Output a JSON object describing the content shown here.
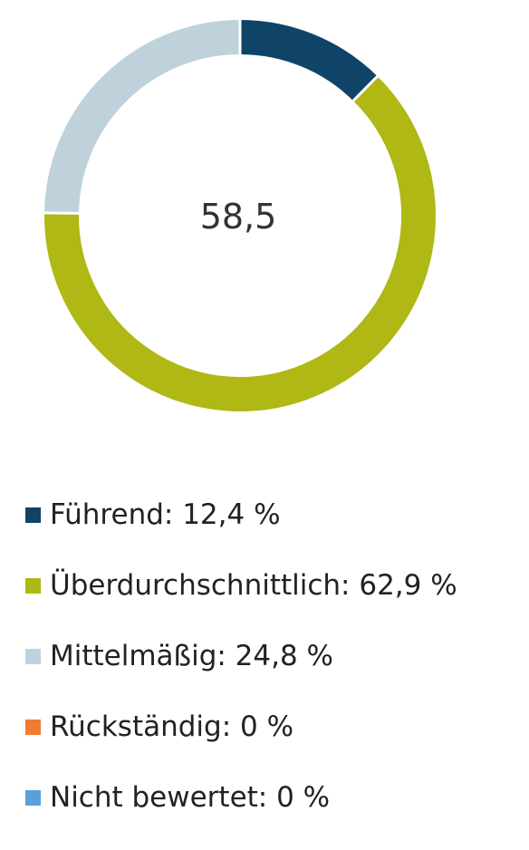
{
  "chart_data": {
    "type": "pie",
    "variant": "donut",
    "center_value": "58,5",
    "slices": [
      {
        "label": "Führend",
        "value": 12.4,
        "value_text": "12,4 %",
        "color": "#0f4468"
      },
      {
        "label": "Überdurchschnittlich",
        "value": 62.9,
        "value_text": "62,9 %",
        "color": "#afb814"
      },
      {
        "label": "Mittelmäßig",
        "value": 24.8,
        "value_text": "24,8 %",
        "color": "#bfd2dc"
      },
      {
        "label": "Rückständig",
        "value": 0,
        "value_text": "0 %",
        "color": "#ee7d33"
      },
      {
        "label": "Nicht bewertet",
        "value": 0,
        "value_text": "0 %",
        "color": "#5aa0d8"
      }
    ],
    "legend_placement": "bottom"
  },
  "legend": {
    "items": [
      {
        "text": "Führend: 12,4 %"
      },
      {
        "text": "Überdurchschnittlich: 62,9 %"
      },
      {
        "text": "Mittelmäßig: 24,8 %"
      },
      {
        "text": "Rückständig: 0 %"
      },
      {
        "text": "Nicht bewertet: 0 %"
      }
    ]
  }
}
